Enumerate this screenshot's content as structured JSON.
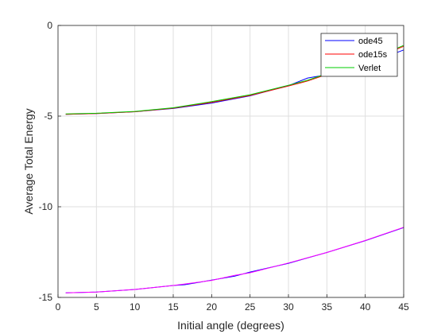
{
  "chart_data": {
    "type": "line",
    "title": "",
    "xlabel": "Initial angle (degrees)",
    "ylabel": "Average Total Energy",
    "xlim": [
      0,
      45
    ],
    "ylim": [
      -15,
      0
    ],
    "grid": true,
    "legend_position": "top-right",
    "x_ticks": [
      "0",
      "5",
      "10",
      "15",
      "20",
      "25",
      "30",
      "35",
      "40",
      "45"
    ],
    "y_ticks": [
      "0",
      "-5",
      "-10",
      "-15"
    ],
    "groups": [
      {
        "x": [
          1,
          5,
          10,
          15,
          20,
          25,
          30,
          32.5,
          35,
          40,
          45
        ],
        "series": [
          {
            "name": "ode45",
            "color": "#0000ff",
            "values": [
              -4.9,
              -4.86,
              -4.76,
              -4.58,
              -4.28,
              -3.88,
              -3.32,
              -2.9,
              -2.72,
              -2.16,
              -1.35
            ]
          },
          {
            "name": "ode15s",
            "color": "#ff0000",
            "values": [
              -4.9,
              -4.86,
              -4.76,
              -4.56,
              -4.24,
              -3.86,
              -3.34,
              -3.06,
              -2.7,
              -2.02,
              -1.15
            ]
          },
          {
            "name": "Verlet",
            "color": "#00cc00",
            "values": [
              -4.88,
              -4.84,
              -4.74,
              -4.54,
              -4.2,
              -3.82,
              -3.3,
              -3.02,
              -2.66,
              -2.0,
              -1.1
            ]
          }
        ]
      },
      {
        "x": [
          1,
          5,
          10,
          15,
          16.5,
          20,
          23,
          25,
          30,
          35,
          40,
          45
        ],
        "series": [
          {
            "name": "",
            "color": "#0000ff",
            "values": [
              -14.75,
              -14.7,
              -14.56,
              -14.34,
              -14.3,
              -14.05,
              -13.83,
              -13.6,
              -13.12,
              -12.52,
              -11.87,
              -11.15
            ]
          },
          {
            "name": "",
            "color": "#ff00ff",
            "values": [
              -14.75,
              -14.7,
              -14.56,
              -14.34,
              -14.26,
              -14.06,
              -13.78,
              -13.64,
              -13.1,
              -12.52,
              -11.86,
              -11.13
            ]
          }
        ]
      }
    ]
  }
}
